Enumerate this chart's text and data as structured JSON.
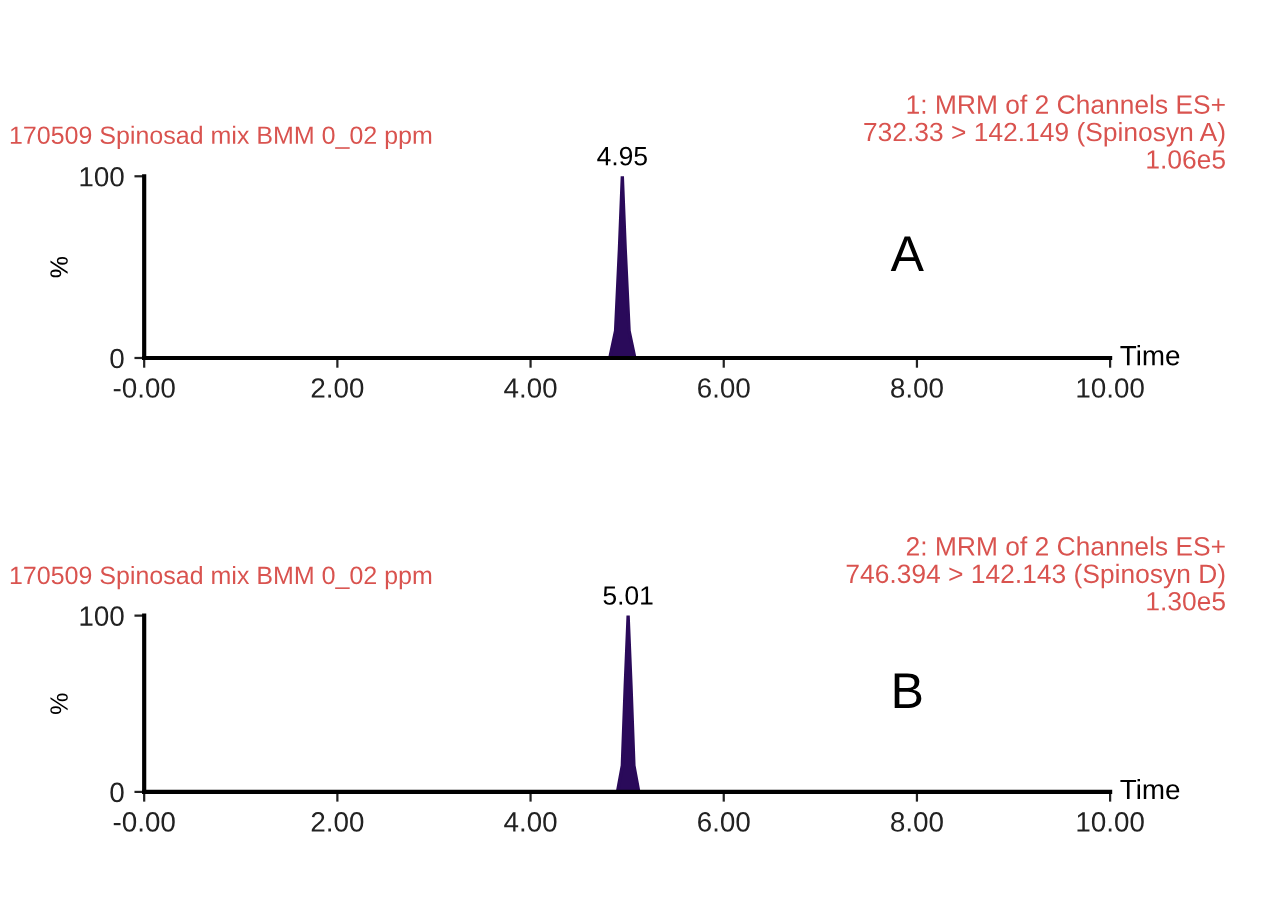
{
  "chart_data": [
    {
      "type": "area",
      "title": "170509 Spinosad mix BMM 0_02 ppm",
      "xlabel": "Time",
      "ylabel": "%",
      "annotations": [
        "1: MRM of 2 Channels ES+\n732.33 > 142.149 (Spinosyn A)\n1.06e5",
        "A",
        {
          "text": "4.95",
          "x": 4.95,
          "y": 100
        }
      ],
      "series": [
        {
          "color": "#2a0a5a",
          "x": [
            0,
            4.82,
            4.88,
            4.92,
            4.95,
            4.98,
            5.02,
            5.08,
            10
          ],
          "values": [
            0,
            0,
            15,
            60,
            100,
            60,
            15,
            0,
            0
          ]
        }
      ],
      "xlim": [
        0,
        10
      ],
      "xticks": [
        {
          "value": 0,
          "label": "-0.00"
        },
        {
          "value": 2,
          "label": "2.00"
        },
        {
          "value": 4,
          "label": "4.00"
        },
        {
          "value": 6,
          "label": "6.00"
        },
        {
          "value": 8,
          "label": "8.00"
        },
        {
          "value": 10,
          "label": "10.00"
        }
      ],
      "ylim": [
        0,
        100
      ],
      "yticks": [
        0,
        100
      ],
      "grid": false,
      "legend": false
    },
    {
      "type": "area",
      "title": "170509 Spinosad mix BMM 0_02 ppm",
      "xlabel": "Time",
      "ylabel": "%",
      "annotations": [
        "2: MRM of 2 Channels ES+\n746.394 > 142.143 (Spinosyn D)\n1.30e5",
        "B",
        {
          "text": "5.01",
          "x": 5.01,
          "y": 100
        }
      ],
      "series": [
        {
          "color": "#2a0a5a",
          "x": [
            0,
            4.9,
            4.95,
            4.98,
            5.01,
            5.04,
            5.07,
            5.12,
            10
          ],
          "values": [
            0,
            0,
            15,
            60,
            100,
            60,
            15,
            0,
            0
          ]
        }
      ],
      "xlim": [
        0,
        10
      ],
      "xticks": [
        {
          "value": 0,
          "label": "-0.00"
        },
        {
          "value": 2,
          "label": "2.00"
        },
        {
          "value": 4,
          "label": "4.00"
        },
        {
          "value": 6,
          "label": "6.00"
        },
        {
          "value": 8,
          "label": "8.00"
        },
        {
          "value": 10,
          "label": "10.00"
        }
      ],
      "ylim": [
        0,
        100
      ],
      "yticks": [
        0,
        100
      ],
      "grid": false,
      "legend": false
    }
  ]
}
